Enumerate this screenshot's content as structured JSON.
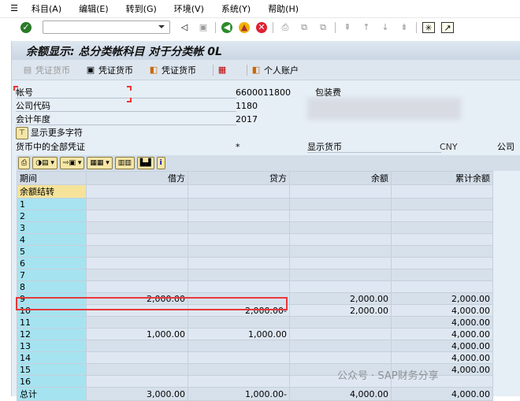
{
  "menu": {
    "items": [
      "科目(A)",
      "编辑(E)",
      "转到(G)",
      "环境(V)",
      "系统(Y)",
      "帮助(H)"
    ]
  },
  "command_field": {
    "value": ""
  },
  "title": "余额显示: 总分类帐科目 对于分类帐 0L",
  "app_toolbar": {
    "buttons": [
      "凭证货币",
      "凭证货币",
      "凭证货币",
      "个人账户"
    ]
  },
  "form": {
    "account_label": "帐号",
    "account_value": "6600011800",
    "account_desc": "包装费",
    "company_label": "公司代码",
    "company_value": "1180",
    "year_label": "会计年度",
    "year_value": "2017",
    "more_chars": "显示更多字符",
    "all_docs_label": "货币中的全部凭证",
    "all_docs_value": "*",
    "display_currency_label": "显示货币",
    "display_currency_value": "CNY",
    "company_cut": "公司"
  },
  "table": {
    "headers": [
      "期间",
      "借方",
      "贷方",
      "余额",
      "累计余额"
    ],
    "rows": [
      [
        "余额结转",
        "",
        "",
        "",
        ""
      ],
      [
        "1",
        "",
        "",
        "",
        ""
      ],
      [
        "2",
        "",
        "",
        "",
        ""
      ],
      [
        "3",
        "",
        "",
        "",
        ""
      ],
      [
        "4",
        "",
        "",
        "",
        ""
      ],
      [
        "5",
        "",
        "",
        "",
        ""
      ],
      [
        "6",
        "",
        "",
        "",
        ""
      ],
      [
        "7",
        "",
        "",
        "",
        ""
      ],
      [
        "8",
        "",
        "",
        "",
        ""
      ],
      [
        "9",
        "2,000.00",
        "",
        "2,000.00",
        "2,000.00"
      ],
      [
        "10",
        "",
        "2,000.00-",
        "2,000.00",
        "4,000.00"
      ],
      [
        "11",
        "",
        "",
        "",
        "4,000.00"
      ],
      [
        "12",
        "1,000.00",
        "1,000.00",
        "",
        "4,000.00"
      ],
      [
        "13",
        "",
        "",
        "",
        "4,000.00"
      ],
      [
        "14",
        "",
        "",
        "",
        "4,000.00"
      ],
      [
        "15",
        "",
        "",
        "",
        "4,000.00"
      ],
      [
        "16",
        "",
        "",
        "",
        ""
      ],
      [
        "总计",
        "3,000.00",
        "1,000.00-",
        "4,000.00",
        "4,000.00"
      ]
    ]
  },
  "watermark": "公众号 · SAP财务分享",
  "colors": {
    "highlight": "#e8383a",
    "period_col": "#a6e3f0"
  }
}
